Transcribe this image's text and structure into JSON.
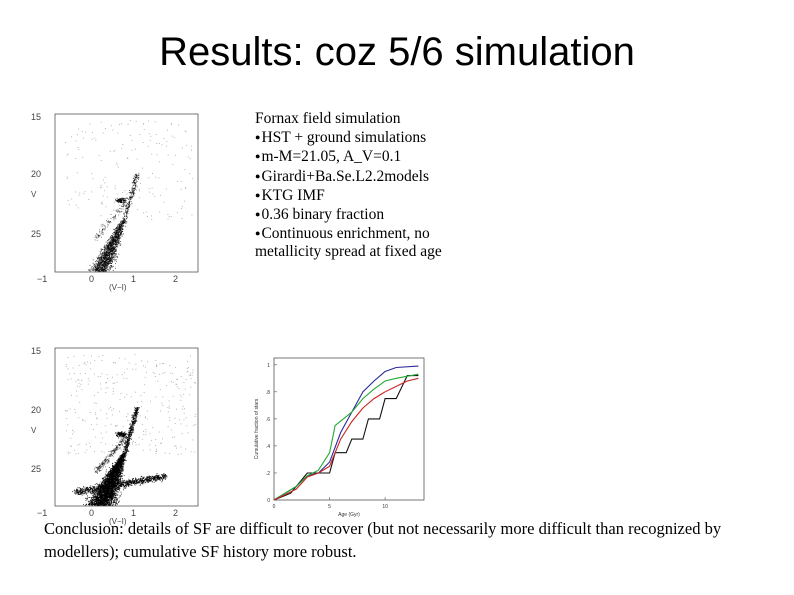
{
  "slide": {
    "title": "Results: coz 5/6 simulation",
    "heading": "Fornax field simulation",
    "bullets": [
      "HST + ground simulations",
      "m-M=21.05, A_V=0.1",
      "Girardi+Ba.Se.L2.2models",
      "KTG IMF",
      "0.36 binary fraction",
      "Continuous enrichment, no"
    ],
    "bullet_continuation": "metallicity spread at fixed age",
    "bullet_symbol": "●",
    "conclusion": "Conclusion: details of SF are difficult to recover (but not necessarily more difficult than recognized by modellers); cumulative SF history more robust."
  },
  "cmd_top": {
    "y_ticks": [
      "15",
      "20",
      "25"
    ],
    "x_ticks": [
      "−1",
      "0",
      "1",
      "2"
    ],
    "ylabel": "V",
    "xlabel": "(V−I)"
  },
  "cmd_bottom": {
    "y_ticks": [
      "15",
      "20",
      "25"
    ],
    "x_ticks": [
      "−1",
      "0",
      "1",
      "2"
    ],
    "ylabel": "V",
    "xlabel": "(V−I)"
  },
  "chart_data": {
    "type": "line",
    "xlabel": "Age (Gyr)",
    "ylabel": "Cumulative fraction of stars",
    "x_ticks": [
      "0",
      "5",
      "10"
    ],
    "y_ticks": [
      "0",
      ".2",
      ".4",
      ".6",
      ".8",
      "1"
    ],
    "xlim": [
      0,
      13.5
    ],
    "ylim": [
      0,
      1.05
    ],
    "grid": false,
    "series": [
      {
        "color": "#111111",
        "points": [
          [
            0,
            0
          ],
          [
            1.5,
            0.05
          ],
          [
            2,
            0.1
          ],
          [
            3,
            0.2
          ],
          [
            4,
            0.2
          ],
          [
            5,
            0.2
          ],
          [
            5.5,
            0.35
          ],
          [
            6.5,
            0.35
          ],
          [
            7,
            0.45
          ],
          [
            8,
            0.45
          ],
          [
            8.5,
            0.6
          ],
          [
            9.5,
            0.6
          ],
          [
            10,
            0.75
          ],
          [
            11,
            0.75
          ],
          [
            12,
            0.92
          ],
          [
            13,
            0.92
          ]
        ]
      },
      {
        "color": "#2a2a9a",
        "points": [
          [
            0,
            0
          ],
          [
            2,
            0.1
          ],
          [
            3,
            0.18
          ],
          [
            4,
            0.2
          ],
          [
            5,
            0.28
          ],
          [
            6,
            0.5
          ],
          [
            7,
            0.65
          ],
          [
            8,
            0.8
          ],
          [
            9,
            0.88
          ],
          [
            10,
            0.95
          ],
          [
            11,
            0.98
          ],
          [
            13,
            0.99
          ]
        ]
      },
      {
        "color": "#22aa33",
        "points": [
          [
            0,
            0
          ],
          [
            2,
            0.1
          ],
          [
            3,
            0.18
          ],
          [
            4,
            0.22
          ],
          [
            5,
            0.35
          ],
          [
            5.5,
            0.55
          ],
          [
            7,
            0.65
          ],
          [
            8,
            0.75
          ],
          [
            9,
            0.82
          ],
          [
            10,
            0.88
          ],
          [
            11,
            0.9
          ],
          [
            13,
            0.93
          ]
        ]
      },
      {
        "color": "#cc2222",
        "points": [
          [
            0,
            0
          ],
          [
            2,
            0.08
          ],
          [
            3,
            0.17
          ],
          [
            4,
            0.2
          ],
          [
            5,
            0.25
          ],
          [
            6,
            0.45
          ],
          [
            7,
            0.58
          ],
          [
            8,
            0.68
          ],
          [
            9,
            0.75
          ],
          [
            10,
            0.8
          ],
          [
            11,
            0.84
          ],
          [
            12,
            0.88
          ],
          [
            13,
            0.9
          ]
        ]
      }
    ]
  }
}
